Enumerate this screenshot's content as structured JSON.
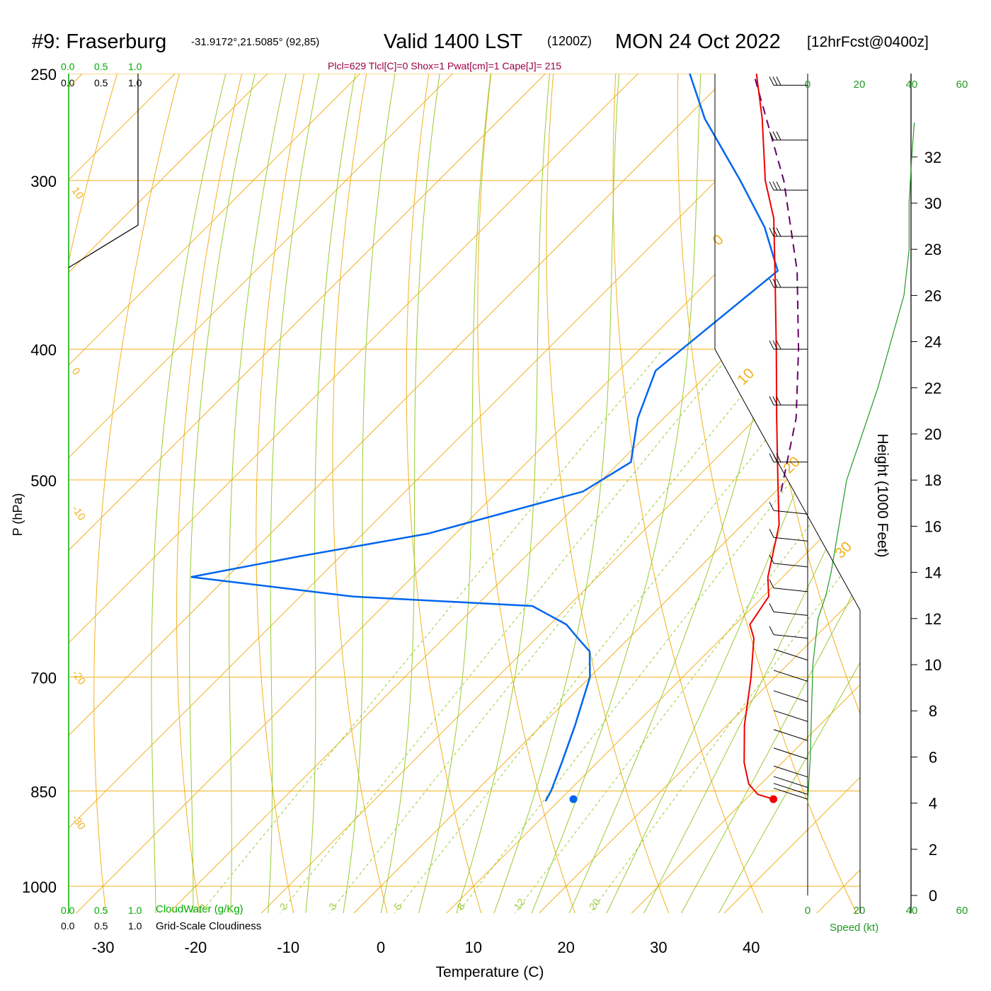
{
  "header": {
    "station": "#9: Fraserburg",
    "coords": "-31.9172°,21.5085° (92,85)",
    "valid_main": "Valid 1400 LST",
    "valid_zulu": "(1200Z)",
    "valid_date": "MON 24 Oct 2022",
    "forecast": "[12hrFcst@0400z]",
    "params": "Plcl=629 Tlcl[C]=0 Shox=1 Pwat[cm]=1 Cape[J]= 215"
  },
  "colors": {
    "temperature": "#ee0000",
    "dewpoint": "#0066ee",
    "parcel": "#660066",
    "isotherm": "#f2b01e",
    "dry_adiabat": "#f2b01e",
    "moist_adiabat": "#99cc33",
    "mixing_ratio": "#99cc33",
    "speed": "#229922",
    "params": "#990044",
    "cloud": "#00aa00"
  },
  "scales": {
    "cloudwater_ticks": [
      "0.0",
      "0.5",
      "1.0"
    ],
    "cloudiness_ticks": [
      "0.0",
      "0.5",
      "1.0"
    ],
    "cloudwater_label": "CloudWater (g/Kg)",
    "cloudiness_label": "Grid-Scale Cloudiness",
    "speed_ticks": [
      "0",
      "20",
      "40",
      "60"
    ],
    "speed_label": "Speed (kt)",
    "height_label": "Height (1000 Feet)",
    "height_ticks": [
      "0",
      "2",
      "4",
      "6",
      "8",
      "10",
      "12",
      "14",
      "16",
      "18",
      "20",
      "22",
      "24",
      "26",
      "28",
      "30",
      "32"
    ]
  },
  "chart_data": {
    "type": "line",
    "chart_kind": "skew-T log-P sounding",
    "xlabel": "Temperature (C)",
    "ylabel": "P (hPa)",
    "x_ticks": [
      -30,
      -20,
      -10,
      0,
      10,
      20,
      30,
      40
    ],
    "pressure_ticks": [
      250,
      300,
      400,
      500,
      700,
      850,
      1000
    ],
    "pressure_range": [
      1070,
      250
    ],
    "temperature_range_at_1000": [
      -34,
      46
    ],
    "mixing_ratio_values": [
      1,
      2,
      3,
      5,
      8,
      12,
      20
    ],
    "dry_adiabat_labels": [
      10,
      0,
      -10,
      -20,
      -30
    ],
    "moist_adiabat_labels": [
      0,
      10,
      20,
      30
    ],
    "series": [
      {
        "name": "Temperature",
        "points": [
          {
            "p": 862,
            "t": 33.0
          },
          {
            "p": 855,
            "t": 30.8
          },
          {
            "p": 840,
            "t": 28.7
          },
          {
            "p": 810,
            "t": 25.9
          },
          {
            "p": 760,
            "t": 21.9
          },
          {
            "p": 700,
            "t": 17.4
          },
          {
            "p": 655,
            "t": 13.5
          },
          {
            "p": 640,
            "t": 11.6
          },
          {
            "p": 610,
            "t": 10.6
          },
          {
            "p": 590,
            "t": 8.4
          },
          {
            "p": 540,
            "t": 4.0
          },
          {
            "p": 500,
            "t": -1.0
          },
          {
            "p": 450,
            "t": -7.8
          },
          {
            "p": 400,
            "t": -15.3
          },
          {
            "p": 350,
            "t": -23.9
          },
          {
            "p": 320,
            "t": -29.7
          },
          {
            "p": 300,
            "t": -34.7
          },
          {
            "p": 270,
            "t": -41.7
          },
          {
            "p": 250,
            "t": -47.2
          }
        ]
      },
      {
        "name": "Dewpoint",
        "points": [
          {
            "p": 865,
            "t": 8.6
          },
          {
            "p": 850,
            "t": 8.1
          },
          {
            "p": 810,
            "t": 6.2
          },
          {
            "p": 760,
            "t": 3.6
          },
          {
            "p": 700,
            "t": 0.0
          },
          {
            "p": 670,
            "t": -2.8
          },
          {
            "p": 655,
            "t": -5.5
          },
          {
            "p": 640,
            "t": -8.2
          },
          {
            "p": 620,
            "t": -13.9
          },
          {
            "p": 610,
            "t": -34.3
          },
          {
            "p": 590,
            "t": -53.9
          },
          {
            "p": 570,
            "t": -44.6
          },
          {
            "p": 548,
            "t": -33.0
          },
          {
            "p": 510,
            "t": -20.8
          },
          {
            "p": 485,
            "t": -18.8
          },
          {
            "p": 450,
            "t": -22.8
          },
          {
            "p": 415,
            "t": -26.0
          },
          {
            "p": 350,
            "t": -23.6
          },
          {
            "p": 325,
            "t": -29.7
          },
          {
            "p": 300,
            "t": -37.4
          },
          {
            "p": 270,
            "t": -47.9
          },
          {
            "p": 250,
            "t": -54.4
          }
        ]
      },
      {
        "name": "Parcel",
        "points": [
          {
            "p": 510,
            "t": 0.6
          },
          {
            "p": 450,
            "t": -5.7
          },
          {
            "p": 400,
            "t": -12.9
          },
          {
            "p": 350,
            "t": -21.5
          },
          {
            "p": 300,
            "t": -32.7
          },
          {
            "p": 250,
            "t": -47.5
          }
        ]
      }
    ],
    "surface_temperature": {
      "p": 862,
      "t": 33.0
    },
    "surface_dewpoint": {
      "p": 862,
      "t": 11.4
    },
    "wind_speed_profile": [
      {
        "h": 4.0,
        "v": 0
      },
      {
        "h": 6,
        "v": 1
      },
      {
        "h": 10,
        "v": 2
      },
      {
        "h": 12,
        "v": 4
      },
      {
        "h": 13,
        "v": 7
      },
      {
        "h": 14,
        "v": 9
      },
      {
        "h": 16,
        "v": 12
      },
      {
        "h": 18,
        "v": 15
      },
      {
        "h": 20,
        "v": 21
      },
      {
        "h": 22,
        "v": 27
      },
      {
        "h": 24,
        "v": 32
      },
      {
        "h": 26,
        "v": 37
      },
      {
        "h": 28,
        "v": 39
      },
      {
        "h": 30,
        "v": 39
      },
      {
        "h": 32,
        "v": 40
      },
      {
        "h": 33.5,
        "v": 41
      }
    ],
    "wind_barbs_hpa": [
      255,
      280,
      305,
      330,
      360,
      400,
      440,
      485,
      530,
      555,
      580,
      605,
      630,
      655,
      680,
      705,
      730,
      755,
      780,
      805,
      830,
      845,
      855,
      862
    ]
  }
}
